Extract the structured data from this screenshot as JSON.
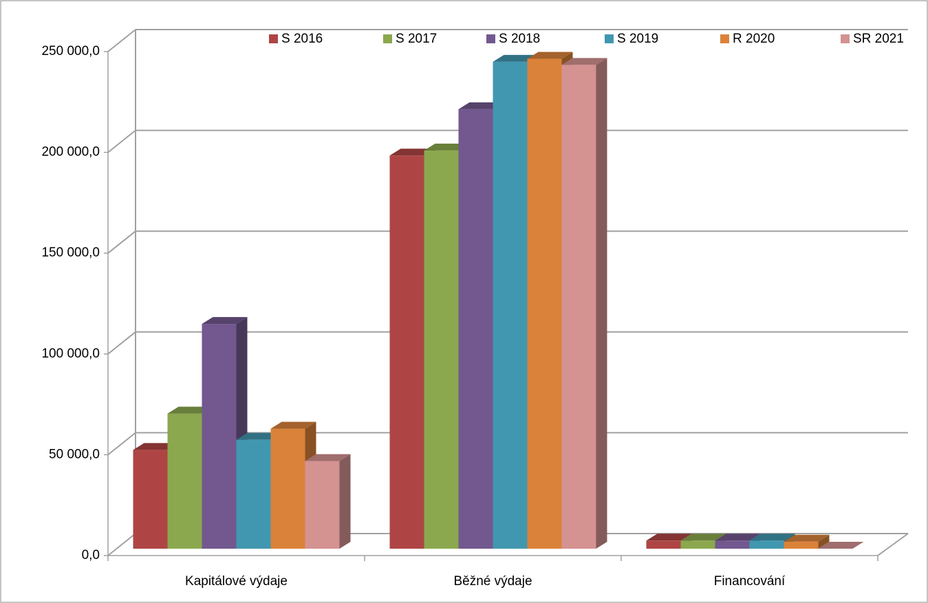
{
  "chart_data": {
    "type": "bar3d",
    "categories": [
      "Kapitálové výdaje",
      "Běžné výdaje",
      "Financování"
    ],
    "series": [
      {
        "name": "S 2016",
        "color": "#ae4544",
        "values": [
          49000,
          195000,
          4000
        ]
      },
      {
        "name": "S 2017",
        "color": "#8ba84e",
        "values": [
          67000,
          197500,
          4000
        ]
      },
      {
        "name": "S 2018",
        "color": "#72588f",
        "values": [
          111500,
          218000,
          4000
        ]
      },
      {
        "name": "S 2019",
        "color": "#4197b0",
        "values": [
          54000,
          241500,
          4000
        ]
      },
      {
        "name": "R 2020",
        "color": "#db823a",
        "values": [
          59500,
          243000,
          3500
        ]
      },
      {
        "name": "SR 2021",
        "color": "#d49291",
        "values": [
          43500,
          240000,
          0
        ]
      }
    ],
    "ylim": [
      0,
      250000
    ],
    "yticks": [
      {
        "value": 0,
        "label": "0,0"
      },
      {
        "value": 50000,
        "label": "50 000,0"
      },
      {
        "value": 100000,
        "label": "100 000,0"
      },
      {
        "value": 150000,
        "label": "150 000,0"
      },
      {
        "value": 200000,
        "label": "200 000,0"
      },
      {
        "value": 250000,
        "label": "250 000,0"
      }
    ],
    "grid": true,
    "legend": "top"
  }
}
